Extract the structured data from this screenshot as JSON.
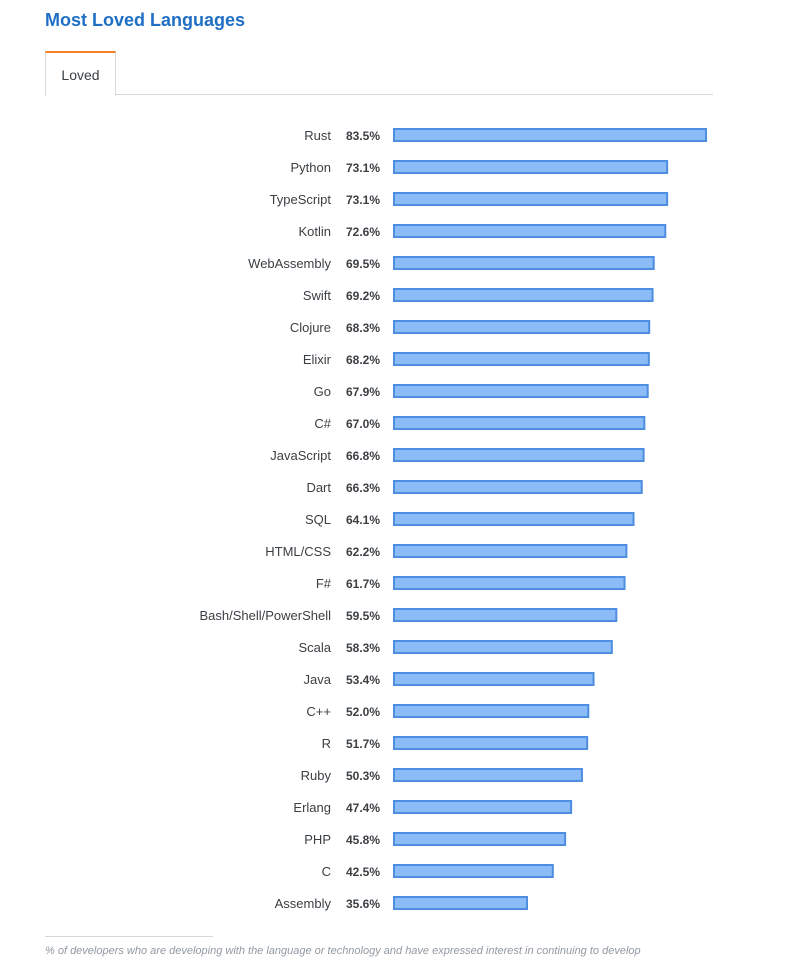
{
  "page": {
    "title": "Most Loved Languages",
    "tabs": [
      {
        "label": "Loved",
        "active": true
      }
    ],
    "footnote": "% of developers who are developing with the language or technology and have expressed interest in continuing to develop"
  },
  "colors": {
    "title": "#1f6fc5",
    "tab_accent": "#f48024",
    "bar_fill": "#8bbcf7",
    "bar_stroke": "#4d8ee0"
  },
  "chart_data": {
    "type": "bar",
    "orientation": "horizontal",
    "value_suffix": "%",
    "categories": [
      "Rust",
      "Python",
      "TypeScript",
      "Kotlin",
      "WebAssembly",
      "Swift",
      "Clojure",
      "Elixir",
      "Go",
      "C#",
      "JavaScript",
      "Dart",
      "SQL",
      "HTML/CSS",
      "F#",
      "Bash/Shell/PowerShell",
      "Scala",
      "Java",
      "C++",
      "R",
      "Ruby",
      "Erlang",
      "PHP",
      "C",
      "Assembly"
    ],
    "series": [
      {
        "values": [
          83.5,
          73.1,
          73.1,
          72.6,
          69.5,
          69.2,
          68.3,
          68.2,
          67.9,
          67.0,
          66.8,
          66.3,
          64.1,
          62.2,
          61.7,
          59.5,
          58.3,
          53.4,
          52.0,
          51.7,
          50.3,
          47.4,
          45.8,
          42.5,
          35.6
        ]
      }
    ],
    "xlim": [
      0,
      83.5
    ],
    "grid": false,
    "legend": "none"
  }
}
